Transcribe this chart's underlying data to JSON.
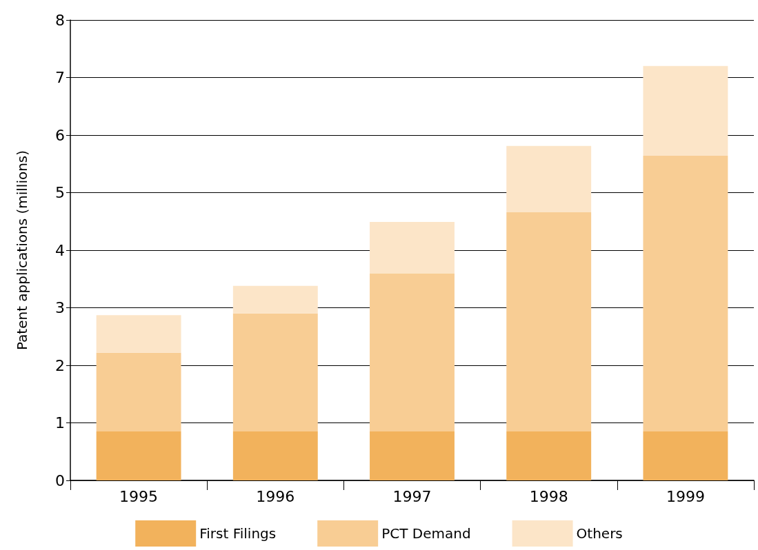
{
  "chart_data": {
    "type": "bar",
    "stacked": true,
    "ylabel": "Patent applications (millions)",
    "categories": [
      "1995",
      "1996",
      "1997",
      "1998",
      "1999"
    ],
    "series": [
      {
        "name": "First Filings",
        "color": "#f2b25c",
        "values": [
          0.85,
          0.85,
          0.85,
          0.85,
          0.85
        ]
      },
      {
        "name": "PCT Demand",
        "color": "#f8cd94",
        "values": [
          1.37,
          2.05,
          2.75,
          3.81,
          4.79
        ]
      },
      {
        "name": "Others",
        "color": "#fce5c8",
        "values": [
          0.65,
          0.48,
          0.89,
          1.15,
          1.56
        ]
      }
    ],
    "ylim": [
      0,
      8
    ],
    "yticks": [
      0,
      1,
      2,
      3,
      4,
      5,
      6,
      7,
      8
    ],
    "grid": "y",
    "legend": "bottom"
  }
}
